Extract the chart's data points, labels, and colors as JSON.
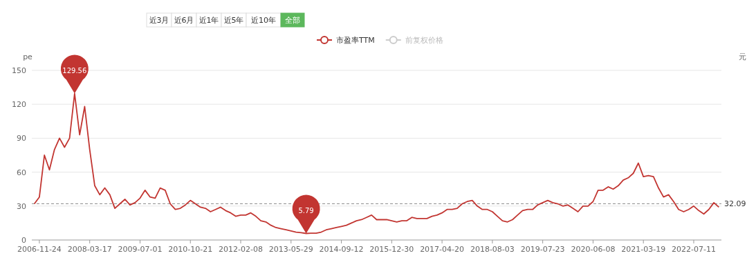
{
  "chart_data": {
    "type": "line",
    "ylabel": "pe",
    "y2label": "元",
    "categories": [
      null,
      "2006-11-24",
      null,
      null,
      null,
      null,
      null,
      null,
      null,
      null,
      null,
      "2008-03-17",
      null,
      null,
      null,
      null,
      null,
      null,
      null,
      null,
      null,
      "2009-07-01",
      null,
      null,
      null,
      null,
      null,
      null,
      null,
      null,
      null,
      "2010-10-21",
      null,
      null,
      null,
      null,
      null,
      null,
      null,
      null,
      null,
      "2012-02-08",
      null,
      null,
      null,
      null,
      null,
      null,
      null,
      null,
      null,
      "2013-05-29",
      null,
      null,
      null,
      null,
      null,
      null,
      null,
      null,
      null,
      "2014-09-12",
      null,
      null,
      null,
      null,
      null,
      null,
      null,
      null,
      null,
      "2015-12-30",
      null,
      null,
      null,
      null,
      null,
      null,
      null,
      null,
      null,
      "2017-04-20",
      null,
      null,
      null,
      null,
      null,
      null,
      null,
      null,
      null,
      "2018-08-03",
      null,
      null,
      null,
      null,
      null,
      null,
      null,
      null,
      null,
      "2019-07-23",
      null,
      null,
      null,
      null,
      null,
      null,
      null,
      null,
      null,
      "2020-06-08",
      null,
      null,
      null,
      null,
      null,
      null,
      null,
      null,
      null,
      "2021-03-19",
      null,
      null,
      null,
      null,
      null,
      null,
      null,
      null,
      null,
      "2022-07-11",
      null,
      null,
      null,
      null,
      null
    ],
    "series": [
      {
        "name": "市盈率TTM",
        "color": "#c23531",
        "values": [
          32,
          38,
          75,
          62,
          80,
          90,
          82,
          90,
          129.56,
          93,
          118,
          80,
          48,
          40,
          46,
          40,
          28,
          32,
          36,
          31,
          33,
          37,
          44,
          38,
          37,
          46,
          44,
          32,
          27,
          28,
          31,
          35,
          32,
          29,
          28,
          25,
          27,
          29,
          26,
          24,
          21,
          22,
          22,
          24,
          21,
          17,
          16,
          13,
          11,
          10,
          9,
          8,
          7,
          6.5,
          5.79,
          6,
          6,
          7,
          9,
          10,
          11,
          12,
          13,
          15,
          17,
          18,
          20,
          22,
          18,
          18,
          18,
          17,
          16,
          17,
          17,
          20,
          19,
          19,
          19,
          21,
          22,
          24,
          27,
          27,
          28,
          32,
          34,
          35,
          30,
          27,
          27,
          25,
          21,
          17,
          16,
          18,
          22,
          26,
          27,
          27,
          31,
          33,
          35,
          33,
          32,
          30,
          31,
          28,
          25,
          30,
          30,
          34,
          44,
          44,
          47,
          45,
          48,
          53,
          55,
          59,
          68,
          56,
          57,
          56,
          46,
          38,
          40,
          34,
          27,
          25,
          27,
          30,
          26,
          23,
          27,
          33,
          29
        ]
      },
      {
        "name": "前复权价格",
        "color": "#cccccc",
        "values": [
          null,
          null,
          null,
          null,
          null,
          null,
          null,
          null,
          null,
          null,
          null,
          null,
          null,
          null,
          null,
          null,
          null,
          null,
          null,
          null,
          null,
          null,
          null,
          null,
          null,
          null,
          null,
          null,
          null,
          null,
          null,
          null,
          null,
          null,
          null,
          null,
          null,
          null,
          null,
          null,
          null,
          null,
          null,
          null,
          null,
          null,
          null,
          null,
          null,
          null,
          null,
          null,
          null,
          null,
          null,
          null,
          null,
          null,
          null,
          null,
          null,
          null,
          null,
          null,
          null,
          null,
          null,
          null,
          null,
          null,
          null,
          null,
          null,
          null,
          null,
          null,
          null,
          null,
          null,
          null,
          null,
          null,
          null,
          null,
          null,
          null,
          null,
          null,
          null,
          null,
          null,
          null,
          null,
          null,
          null,
          null,
          null,
          null,
          null,
          null,
          null,
          null,
          null,
          null,
          null,
          null,
          null,
          null,
          null,
          null,
          null,
          null,
          null,
          null,
          null,
          null,
          null,
          null,
          null,
          null,
          null,
          null,
          null,
          null,
          null,
          null,
          null,
          null,
          null,
          null,
          null,
          null,
          null,
          null,
          null,
          null,
          null
        ]
      }
    ],
    "ylim": [
      0,
      150
    ],
    "yticks": [
      0,
      30,
      60,
      90,
      120,
      150
    ],
    "grid": "y",
    "legend": "top",
    "ref_lines": [
      {
        "axis": "y",
        "value": 32.09,
        "label": "32.09",
        "color": "#888888",
        "line_style": "dashed"
      }
    ],
    "annotations": [
      {
        "text": "129.56",
        "y": 129.56
      },
      {
        "text": "5.79",
        "y": 5.79
      },
      "近3月",
      "近6月",
      "近1年",
      "近5年",
      "近10年",
      "全部"
    ]
  }
}
